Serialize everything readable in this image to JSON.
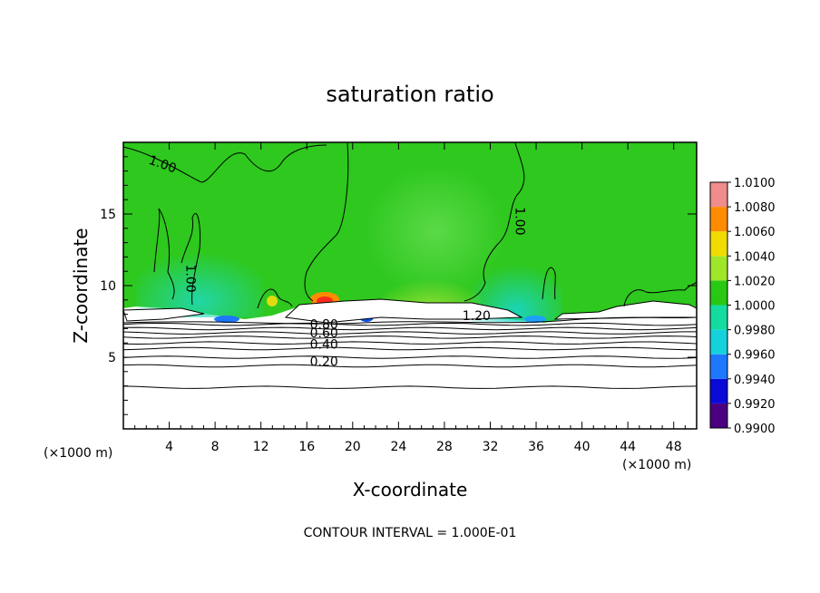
{
  "chart_data": {
    "type": "heatmap",
    "title": "saturation ratio",
    "xlabel": "X-coordinate",
    "ylabel": "Z-coordinate",
    "x_unit": "(×1000 m)",
    "y_unit": "(×1000 m)",
    "footer": "CONTOUR INTERVAL = 1.000E-01",
    "xlim": [
      0,
      50
    ],
    "ylim": [
      0,
      20
    ],
    "x_ticks": [
      4,
      8,
      12,
      16,
      20,
      24,
      28,
      32,
      36,
      40,
      44,
      48
    ],
    "y_ticks": [
      5,
      10,
      15
    ],
    "colorbar": {
      "levels": [
        0.99,
        0.992,
        0.994,
        0.996,
        0.998,
        1.0,
        1.002,
        1.004,
        1.006,
        1.008,
        1.01
      ],
      "tick_labels": [
        "0.9900",
        "0.9920",
        "0.9940",
        "0.9960",
        "0.9980",
        "1.0000",
        "1.0020",
        "1.0040",
        "1.0060",
        "1.0080",
        "1.0100"
      ],
      "colors": [
        "#4b0082",
        "#0a0ad8",
        "#1e78ff",
        "#14d2dc",
        "#14dca0",
        "#28c814",
        "#a0e628",
        "#f0dc00",
        "#ff8c00",
        "#ff1e1e",
        "#f08c8c"
      ]
    },
    "contour_labels": [
      {
        "text": "1.00",
        "x": 3.3,
        "y": 18.2
      },
      {
        "text": "1.00",
        "x": 5.5,
        "y": 10.5
      },
      {
        "text": "1.00",
        "x": 34.2,
        "y": 14.5
      },
      {
        "text": "1.20",
        "x": 30.8,
        "y": 7.6
      },
      {
        "text": "0.80",
        "x": 17.5,
        "y": 7.0
      },
      {
        "text": "0.60",
        "x": 17.5,
        "y": 6.4
      },
      {
        "text": "0.40",
        "x": 17.5,
        "y": 5.6
      },
      {
        "text": "0.20",
        "x": 17.5,
        "y": 4.4
      }
    ]
  }
}
